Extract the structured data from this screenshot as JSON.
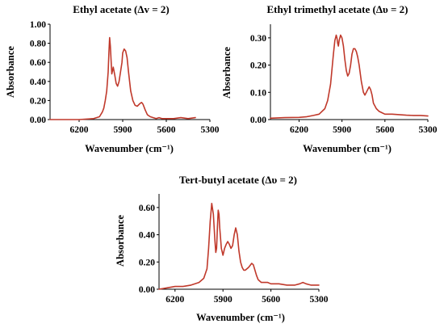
{
  "colors": {
    "series": "#c0392b",
    "axis": "#000000"
  },
  "chart_data": [
    {
      "type": "line",
      "title": "Ethyl acetate (Δv = 2)",
      "xlabel": "Wavenumber (cm⁻¹)",
      "ylabel": "Absorbance",
      "xlim": [
        6400,
        5300
      ],
      "ylim": [
        0,
        1.0
      ],
      "xticks": [
        6200,
        5900,
        5600,
        5300
      ],
      "xtick_labels": [
        "6200",
        "5900",
        "5600",
        "5300"
      ],
      "yticks": [
        0,
        0.2,
        0.4,
        0.6,
        0.8,
        1.0
      ],
      "ytick_labels": [
        "0.00",
        "0.20",
        "0.40",
        "0.60",
        "0.80",
        "1.00"
      ],
      "series": [
        {
          "x": [
            6400,
            6300,
            6200,
            6100,
            6060,
            6040,
            6030,
            6020,
            6010,
            6000,
            5995,
            5990,
            5985,
            5975,
            5965,
            5955,
            5945,
            5935,
            5925,
            5915,
            5905,
            5900,
            5890,
            5880,
            5870,
            5860,
            5845,
            5830,
            5815,
            5800,
            5780,
            5770,
            5760,
            5745,
            5730,
            5710,
            5690,
            5670,
            5650,
            5630,
            5600,
            5550,
            5500,
            5450,
            5400
          ],
          "y": [
            0.0,
            0.0,
            0.0,
            0.01,
            0.03,
            0.08,
            0.12,
            0.2,
            0.3,
            0.5,
            0.7,
            0.86,
            0.77,
            0.48,
            0.55,
            0.47,
            0.38,
            0.35,
            0.4,
            0.5,
            0.6,
            0.7,
            0.74,
            0.72,
            0.65,
            0.5,
            0.3,
            0.2,
            0.15,
            0.14,
            0.17,
            0.18,
            0.16,
            0.1,
            0.05,
            0.03,
            0.02,
            0.01,
            0.02,
            0.01,
            0.01,
            0.01,
            0.02,
            0.01,
            0.02
          ]
        }
      ]
    },
    {
      "type": "line",
      "title": "Ethyl trimethyl acetate (Δυ = 2)",
      "xlabel": "Wavenumber (cm⁻¹)",
      "ylabel": "Absorbance",
      "xlim": [
        6400,
        5300
      ],
      "ylim": [
        0,
        0.35
      ],
      "xticks": [
        6200,
        5900,
        5600,
        5300
      ],
      "xtick_labels": [
        "6200",
        "5900",
        "5600",
        "5300"
      ],
      "yticks": [
        0,
        0.1,
        0.2,
        0.3
      ],
      "ytick_labels": [
        "0.00",
        "0.10",
        "0.20",
        "0.30"
      ],
      "series": [
        {
          "x": [
            6400,
            6300,
            6200,
            6150,
            6100,
            6060,
            6020,
            6000,
            5980,
            5960,
            5950,
            5940,
            5935,
            5930,
            5925,
            5920,
            5910,
            5900,
            5890,
            5880,
            5870,
            5860,
            5850,
            5840,
            5830,
            5820,
            5810,
            5800,
            5790,
            5780,
            5765,
            5750,
            5740,
            5730,
            5720,
            5710,
            5700,
            5690,
            5680,
            5660,
            5640,
            5620,
            5600,
            5580,
            5550,
            5500,
            5450,
            5400,
            5350,
            5300
          ],
          "y": [
            0.005,
            0.007,
            0.008,
            0.01,
            0.015,
            0.02,
            0.04,
            0.07,
            0.13,
            0.24,
            0.29,
            0.31,
            0.3,
            0.28,
            0.27,
            0.29,
            0.31,
            0.3,
            0.27,
            0.22,
            0.18,
            0.16,
            0.17,
            0.2,
            0.24,
            0.26,
            0.26,
            0.25,
            0.23,
            0.2,
            0.14,
            0.1,
            0.09,
            0.1,
            0.11,
            0.12,
            0.11,
            0.09,
            0.06,
            0.04,
            0.03,
            0.025,
            0.02,
            0.02,
            0.02,
            0.018,
            0.016,
            0.015,
            0.015,
            0.013
          ]
        }
      ]
    },
    {
      "type": "line",
      "title": "Tert-butyl acetate  (Δυ = 2)",
      "xlabel": "Wavenumber (cm⁻¹)",
      "ylabel": "Absorbance",
      "xlim": [
        6300,
        5300
      ],
      "ylim": [
        0,
        0.7
      ],
      "xticks": [
        6200,
        5900,
        5600,
        5300
      ],
      "xtick_labels": [
        "6200",
        "5900",
        "5600",
        "5300"
      ],
      "yticks": [
        0,
        0.2,
        0.4,
        0.6
      ],
      "ytick_labels": [
        "0.00",
        "0.20",
        "0.40",
        "0.60"
      ],
      "series": [
        {
          "x": [
            6300,
            6250,
            6200,
            6150,
            6100,
            6050,
            6020,
            6000,
            5990,
            5980,
            5970,
            5960,
            5950,
            5945,
            5940,
            5935,
            5930,
            5925,
            5920,
            5910,
            5900,
            5890,
            5880,
            5870,
            5860,
            5850,
            5840,
            5830,
            5820,
            5810,
            5800,
            5790,
            5780,
            5770,
            5760,
            5740,
            5720,
            5710,
            5700,
            5690,
            5680,
            5670,
            5660,
            5640,
            5620,
            5600,
            5550,
            5500,
            5450,
            5420,
            5400,
            5380,
            5350,
            5300
          ],
          "y": [
            0.0,
            0.01,
            0.02,
            0.02,
            0.03,
            0.05,
            0.08,
            0.15,
            0.3,
            0.5,
            0.63,
            0.55,
            0.35,
            0.27,
            0.3,
            0.45,
            0.58,
            0.55,
            0.45,
            0.3,
            0.25,
            0.3,
            0.33,
            0.35,
            0.33,
            0.3,
            0.32,
            0.4,
            0.45,
            0.4,
            0.28,
            0.2,
            0.16,
            0.14,
            0.14,
            0.16,
            0.19,
            0.18,
            0.14,
            0.1,
            0.07,
            0.06,
            0.05,
            0.05,
            0.05,
            0.04,
            0.04,
            0.03,
            0.03,
            0.04,
            0.05,
            0.04,
            0.03,
            0.03
          ]
        }
      ]
    }
  ]
}
